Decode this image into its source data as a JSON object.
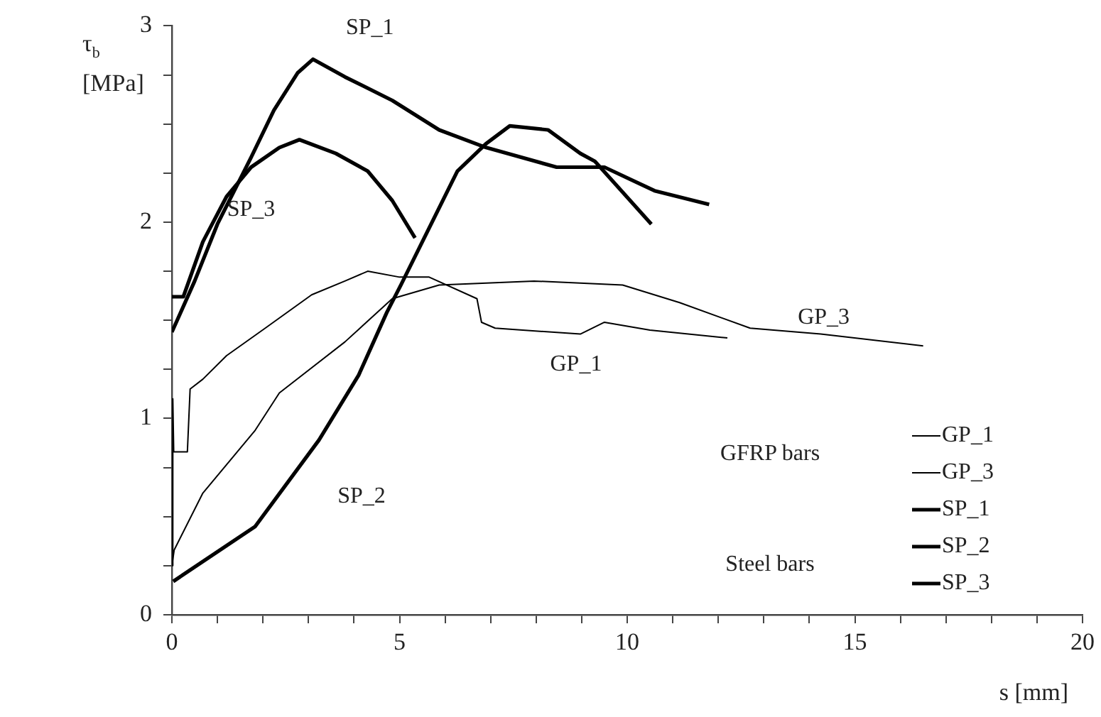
{
  "chart_data": {
    "type": "line",
    "xlabel": "s [mm]",
    "ylabel": "τ$_{b}$ [MPa]",
    "xlim": [
      0,
      20
    ],
    "ylim": [
      0,
      3
    ],
    "xticks": [
      0,
      {
        "value": 1,
        "label": null
      },
      {
        "value": 2,
        "label": null
      },
      {
        "value": 3,
        "label": null
      },
      {
        "value": 4,
        "label": null
      },
      5,
      {
        "value": 6,
        "label": null
      },
      {
        "value": 7,
        "label": null
      },
      {
        "value": 8,
        "label": null
      },
      {
        "value": 9,
        "label": null
      },
      10,
      {
        "value": 11,
        "label": null
      },
      {
        "value": 12,
        "label": null
      },
      {
        "value": 13,
        "label": null
      },
      {
        "value": 14,
        "label": null
      },
      15,
      {
        "value": 16,
        "label": null
      },
      {
        "value": 17,
        "label": null
      },
      {
        "value": 18,
        "label": null
      },
      {
        "value": 19,
        "label": null
      },
      20
    ],
    "yticks": [
      0,
      {
        "value": 0.25,
        "label": null
      },
      {
        "value": 0.5,
        "label": null
      },
      {
        "value": 0.75,
        "label": null
      },
      1,
      {
        "value": 1.25,
        "label": null
      },
      {
        "value": 1.5,
        "label": null
      },
      {
        "value": 1.75,
        "label": null
      },
      2,
      {
        "value": 2.25,
        "label": null
      },
      {
        "value": 2.5,
        "label": null
      },
      {
        "value": 2.75,
        "label": null
      },
      3
    ],
    "grid": false,
    "legend": "bottom right",
    "marker": "none",
    "line_style": "solid",
    "annotations": [
      "GFRP bars",
      "Steel bars"
    ],
    "series": [
      {
        "name": "GP_1",
        "color": "#000000",
        "x": [
          0,
          0.02,
          0.04,
          0.34,
          0.4,
          0.68,
          1.2,
          2.05,
          3.07,
          3.8,
          4.3,
          5,
          5.65,
          6.7,
          6.8,
          7.1,
          8.97,
          9.5,
          10.5,
          12.2
        ],
        "values": [
          0.25,
          1.1,
          0.83,
          0.83,
          1.15,
          1.2,
          1.32,
          1.46,
          1.63,
          1.7,
          1.75,
          1.72,
          1.72,
          1.61,
          1.49,
          1.46,
          1.43,
          1.49,
          1.45,
          1.41
        ]
      },
      {
        "name": "GP_3",
        "color": "#000000",
        "x": [
          0,
          0.05,
          0.68,
          1.83,
          2.36,
          3.8,
          4.84,
          5.87,
          7.95,
          9.9,
          11.15,
          12.7,
          14.25,
          16.5
        ],
        "values": [
          0.25,
          0.33,
          0.62,
          0.94,
          1.13,
          1.39,
          1.61,
          1.68,
          1.7,
          1.68,
          1.59,
          1.46,
          1.43,
          1.37
        ]
      },
      {
        "name": "SP_1",
        "color": "#000000",
        "x": [
          0,
          0.5,
          1,
          1.74,
          2.24,
          2.76,
          3.1,
          3.8,
          4.84,
          5.87,
          6.9,
          8.45,
          9.5,
          10.6,
          11.8
        ],
        "values": [
          1.44,
          1.7,
          1.99,
          2.33,
          2.57,
          2.76,
          2.83,
          2.74,
          2.62,
          2.47,
          2.38,
          2.28,
          2.28,
          2.16,
          2.09
        ]
      },
      {
        "name": "SP_2",
        "color": "#000000",
        "x": [
          0.03,
          1.83,
          3.23,
          4.1,
          4.72,
          5.03,
          6.27,
          6.9,
          7.42,
          8.26,
          8.97,
          9.29,
          10.53
        ],
        "values": [
          0.17,
          0.45,
          0.89,
          1.22,
          1.54,
          1.68,
          2.26,
          2.4,
          2.49,
          2.47,
          2.35,
          2.31,
          1.99
        ]
      },
      {
        "name": "SP_3",
        "color": "#000000",
        "x": [
          0,
          0.25,
          0.68,
          1.2,
          1.74,
          2.36,
          2.8,
          3.6,
          4.3,
          4.84,
          5.34
        ],
        "values": [
          1.62,
          1.62,
          1.9,
          2.13,
          2.28,
          2.38,
          2.42,
          2.35,
          2.26,
          2.11,
          1.92
        ]
      }
    ]
  }
}
